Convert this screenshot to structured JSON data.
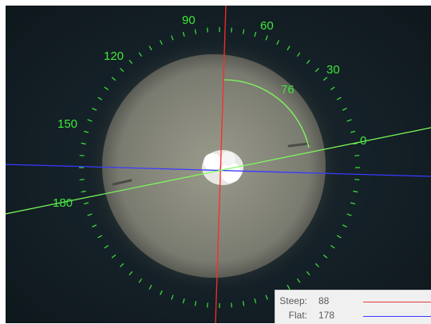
{
  "angle_labels": [
    "90",
    "60",
    "120",
    "30",
    "150",
    "0",
    "180"
  ],
  "measured_angle": "76",
  "legend": {
    "steep": {
      "label": "Steep:",
      "value": "88",
      "color": "#e83a3a"
    },
    "flat": {
      "label": "Flat:",
      "value": "178",
      "color": "#3a3aff"
    }
  },
  "colors": {
    "scale": "#3ee83a",
    "steep_axis": "#ff2a2a",
    "flat_axis": "#3a3aff",
    "axis_line": "#7cff5a"
  }
}
